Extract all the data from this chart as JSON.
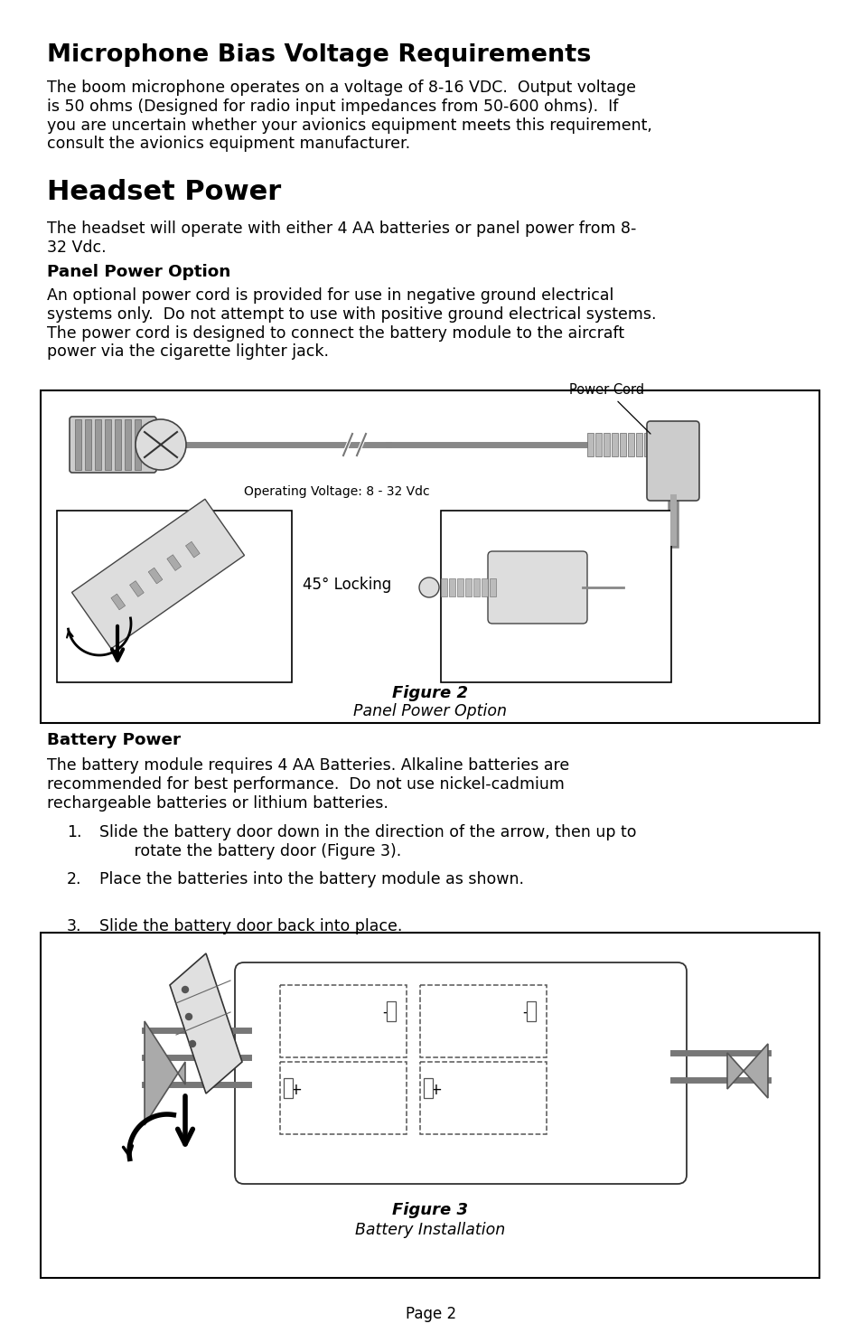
{
  "page_bg": "#ffffff",
  "title1": "Microphone Bias Voltage Requirements",
  "title2": "Headset Power",
  "section_bold1": "Panel Power Option",
  "section_bold2": "Battery Power",
  "fig2_label": "Figure 2",
  "fig2_caption": "Panel Power Option",
  "fig3_label": "Figure 3",
  "fig3_caption": "Battery Installation",
  "page_label": "Page 2",
  "power_cord_label": "Power Cord",
  "op_voltage_label": "Operating Voltage: 8 - 32 Vdc",
  "locking_label": "45° Locking"
}
